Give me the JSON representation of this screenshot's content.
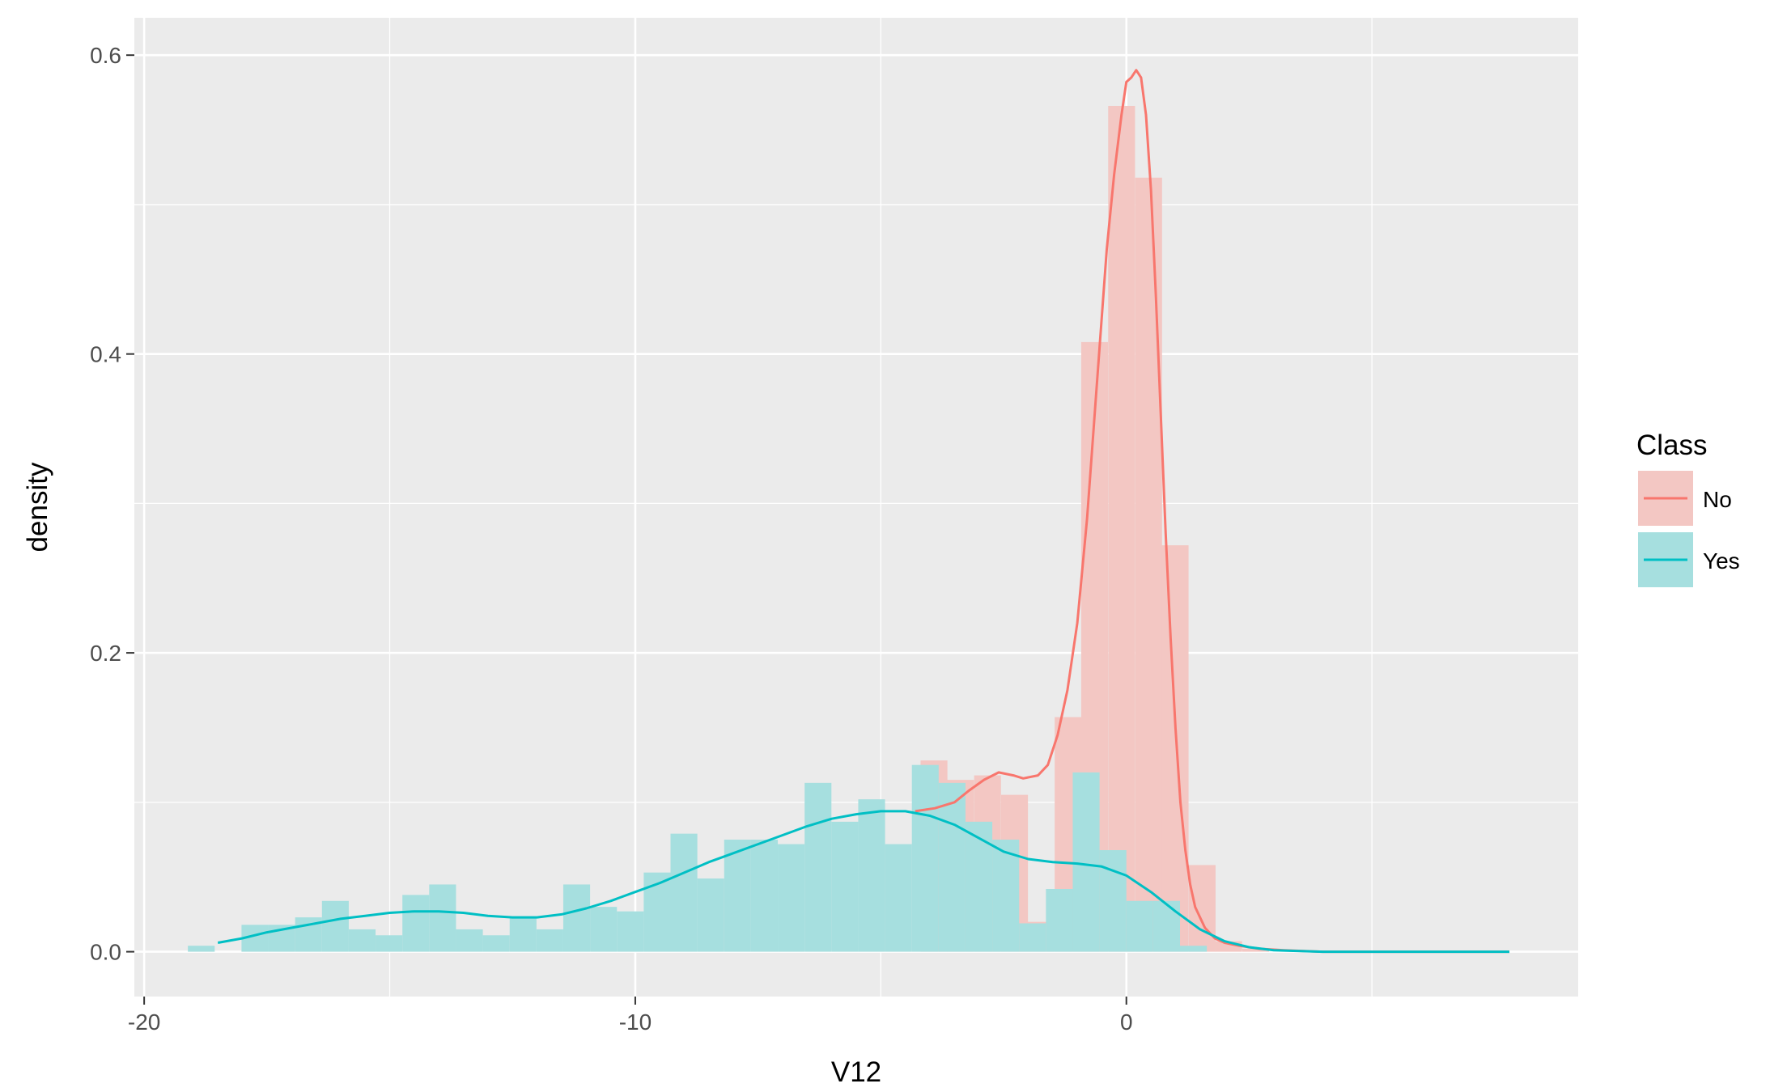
{
  "chart_data": {
    "type": "area",
    "title": "",
    "xlabel": "V12",
    "ylabel": "density",
    "xlim": [
      -20.2,
      9.2
    ],
    "ylim": [
      -0.03,
      0.625
    ],
    "x_ticks": [
      -20,
      -10,
      0
    ],
    "x_tick_labels": [
      "-20",
      "-10",
      "0"
    ],
    "y_ticks": [
      0.0,
      0.2,
      0.4,
      0.6
    ],
    "y_tick_labels": [
      "0.0",
      "0.2",
      "0.4",
      "0.6"
    ],
    "grid": true,
    "legend": {
      "title": "Class",
      "position": "right",
      "entries": [
        {
          "label": "No",
          "line_color": "#F8766D",
          "fill_color": "#F3C7C3"
        },
        {
          "label": "Yes",
          "line_color": "#00BFC4",
          "fill_color": "#A6DFDF"
        }
      ]
    },
    "colors": {
      "panel_background": "#EBEBEB",
      "grid": "#FFFFFF",
      "no_line": "#F8766D",
      "yes_line": "#00BFC4",
      "no_fill": "#F3C7C3",
      "yes_fill": "#A6DFDF"
    },
    "histogram": {
      "bin_width": 0.546,
      "bin_start": -19.11,
      "no_bins": [
        {
          "x0": -4.19,
          "value": 0.128
        },
        {
          "x0": -3.65,
          "value": 0.115
        },
        {
          "x0": -3.1,
          "value": 0.118
        },
        {
          "x0": -2.55,
          "value": 0.105
        },
        {
          "x0": -2.01,
          "value": 0.02
        },
        {
          "x0": -1.46,
          "value": 0.157
        },
        {
          "x0": -0.92,
          "value": 0.408
        },
        {
          "x0": -0.37,
          "value": 0.566
        },
        {
          "x0": 0.18,
          "value": 0.518
        },
        {
          "x0": 0.72,
          "value": 0.272
        },
        {
          "x0": 1.27,
          "value": 0.058
        },
        {
          "x0": 1.81,
          "value": 0.007
        },
        {
          "x0": 2.36,
          "value": 0.002
        }
      ],
      "yes_values": [
        0.004,
        0.0,
        0.018,
        0.018,
        0.023,
        0.034,
        0.015,
        0.011,
        0.038,
        0.045,
        0.015,
        0.011,
        0.023,
        0.015,
        0.045,
        0.03,
        0.027,
        0.053,
        0.079,
        0.049,
        0.075,
        0.075,
        0.072,
        0.113,
        0.087,
        0.102,
        0.072,
        0.125,
        0.113,
        0.087,
        0.075,
        0.019,
        0.042,
        0.12,
        0.068,
        0.034,
        0.034,
        0.004
      ]
    },
    "series": [
      {
        "name": "No",
        "x": [
          -4.3,
          -3.9,
          -3.5,
          -3.2,
          -2.9,
          -2.6,
          -2.3,
          -2.1,
          -1.8,
          -1.6,
          -1.4,
          -1.2,
          -1.0,
          -0.8,
          -0.6,
          -0.4,
          -0.25,
          -0.1,
          0.0,
          0.1,
          0.2,
          0.3,
          0.4,
          0.5,
          0.6,
          0.7,
          0.8,
          0.9,
          1.0,
          1.1,
          1.2,
          1.3,
          1.4,
          1.6,
          1.8,
          2.0,
          2.3,
          2.7,
          3.2,
          4.0,
          5.0,
          6.5,
          7.8
        ],
        "y": [
          0.094,
          0.096,
          0.1,
          0.108,
          0.115,
          0.12,
          0.118,
          0.116,
          0.118,
          0.125,
          0.145,
          0.175,
          0.22,
          0.29,
          0.38,
          0.47,
          0.52,
          0.56,
          0.582,
          0.585,
          0.59,
          0.585,
          0.56,
          0.51,
          0.44,
          0.36,
          0.28,
          0.21,
          0.15,
          0.1,
          0.068,
          0.045,
          0.03,
          0.016,
          0.009,
          0.006,
          0.004,
          0.002,
          0.001,
          0.0,
          0.0,
          0.0,
          0.0
        ]
      },
      {
        "name": "Yes",
        "x": [
          -18.5,
          -18.0,
          -17.5,
          -17.0,
          -16.5,
          -16.0,
          -15.5,
          -15.0,
          -14.5,
          -14.0,
          -13.5,
          -13.0,
          -12.5,
          -12.0,
          -11.5,
          -11.0,
          -10.5,
          -10.0,
          -9.5,
          -9.0,
          -8.5,
          -8.0,
          -7.5,
          -7.0,
          -6.5,
          -6.0,
          -5.5,
          -5.0,
          -4.5,
          -4.0,
          -3.5,
          -3.0,
          -2.5,
          -2.0,
          -1.5,
          -1.0,
          -0.5,
          0.0,
          0.5,
          1.0,
          1.5,
          2.0,
          2.5,
          3.0,
          4.0,
          5.0,
          6.0,
          7.0,
          7.8
        ],
        "y": [
          0.006,
          0.009,
          0.013,
          0.016,
          0.019,
          0.022,
          0.024,
          0.026,
          0.027,
          0.027,
          0.026,
          0.024,
          0.023,
          0.023,
          0.025,
          0.029,
          0.034,
          0.04,
          0.046,
          0.053,
          0.06,
          0.066,
          0.072,
          0.078,
          0.084,
          0.089,
          0.092,
          0.094,
          0.094,
          0.091,
          0.085,
          0.076,
          0.067,
          0.062,
          0.06,
          0.059,
          0.057,
          0.051,
          0.04,
          0.027,
          0.015,
          0.007,
          0.003,
          0.001,
          0.0,
          0.0,
          0.0,
          0.0,
          0.0
        ]
      }
    ]
  }
}
